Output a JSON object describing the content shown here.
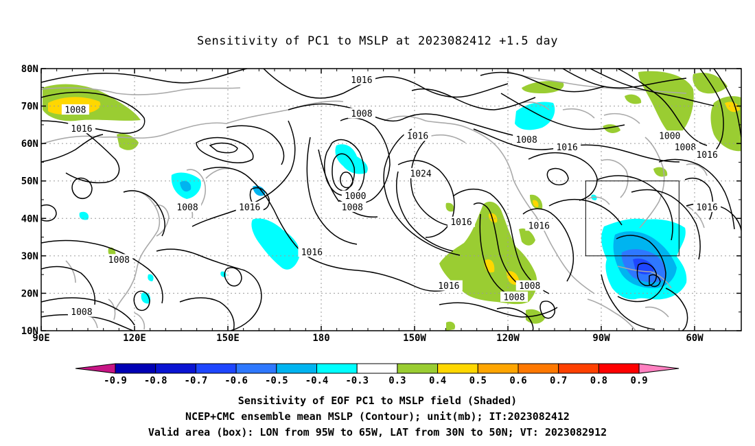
{
  "title": "Sensitivity of PC1 to MSLP at 2023082412 +1.5 day",
  "latitude_labels": [
    "80N",
    "70N",
    "60N",
    "50N",
    "40N",
    "30N",
    "20N",
    "10N"
  ],
  "longitude_labels": [
    "90E",
    "120E",
    "150E",
    "180",
    "150W",
    "120W",
    "90W",
    "60W"
  ],
  "colorbar": {
    "tick_labels": [
      "-0.9",
      "-0.8",
      "-0.7",
      "-0.6",
      "-0.5",
      "-0.4",
      "-0.3",
      "0.3",
      "0.4",
      "0.5",
      "0.6",
      "0.7",
      "0.8",
      "0.9"
    ],
    "colors": [
      "#c71585",
      "#0000b4",
      "#0a14d2",
      "#1e46ff",
      "#2e78ff",
      "#00b4f0",
      "#00ffff",
      "#ffffff",
      "#9acd32",
      "#ffd700",
      "#ffa500",
      "#ff7800",
      "#ff4000",
      "#ff0000",
      "#ff80c0"
    ]
  },
  "contour_labels": [
    {
      "text": "1016",
      "lon": 193,
      "lat": 77
    },
    {
      "text": "1008",
      "lon": 101,
      "lat": 69
    },
    {
      "text": "1016",
      "lon": 103,
      "lat": 64
    },
    {
      "text": "1008",
      "lon": 193,
      "lat": 68
    },
    {
      "text": "1016",
      "lon": 211,
      "lat": 62
    },
    {
      "text": "1008",
      "lon": 246,
      "lat": 61
    },
    {
      "text": "1016",
      "lon": 259,
      "lat": 59
    },
    {
      "text": "1000",
      "lon": 292,
      "lat": 62
    },
    {
      "text": "1008",
      "lon": 297,
      "lat": 59
    },
    {
      "text": "1016",
      "lon": 304,
      "lat": 57
    },
    {
      "text": "1024",
      "lon": 212,
      "lat": 52
    },
    {
      "text": "1000",
      "lon": 191,
      "lat": 46
    },
    {
      "text": "1008",
      "lon": 190,
      "lat": 43
    },
    {
      "text": "1008",
      "lon": 137,
      "lat": 43
    },
    {
      "text": "1016",
      "lon": 157,
      "lat": 43
    },
    {
      "text": "1016",
      "lon": 225,
      "lat": 39
    },
    {
      "text": "1016",
      "lon": 250,
      "lat": 38
    },
    {
      "text": "1016",
      "lon": 304,
      "lat": 43
    },
    {
      "text": "1016",
      "lon": 177,
      "lat": 31
    },
    {
      "text": "1008",
      "lon": 115,
      "lat": 29
    },
    {
      "text": "1016",
      "lon": 221,
      "lat": 22
    },
    {
      "text": "1008",
      "lon": 247,
      "lat": 22
    },
    {
      "text": "1008",
      "lon": 242,
      "lat": 19
    },
    {
      "text": "1008",
      "lon": 103,
      "lat": 15
    }
  ],
  "validation_box": {
    "lon_min": 265,
    "lon_max": 295,
    "lat_min": 30,
    "lat_max": 50
  },
  "captions": {
    "line1": "Sensitivity of EOF PC1 to MSLP field (Shaded)",
    "line2": "NCEP+CMC ensemble mean MSLP (Contour); unit(mb); IT:2023082412",
    "line3": "Valid area (box): LON from 95W to 65W, LAT from 30N to 50N; VT: 2023082912"
  }
}
